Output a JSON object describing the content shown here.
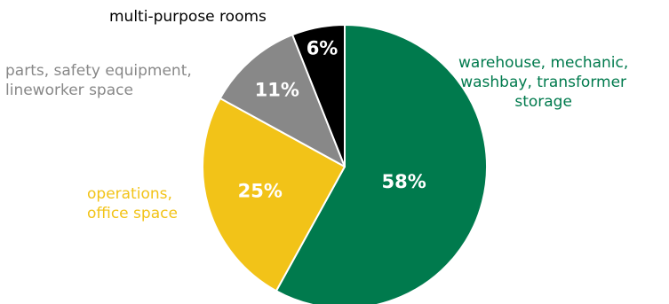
{
  "chart_data": {
    "type": "pie",
    "start": "top",
    "direction": "clockwise",
    "slices": [
      {
        "name": "warehouse, mechanic,\nwashbay, transformer\nstorage",
        "value": 58,
        "value_label": "58%",
        "color": "#007a4d"
      },
      {
        "name": "operations,\noffice space",
        "value": 25,
        "value_label": "25%",
        "color": "#f2c318"
      },
      {
        "name": "parts, safety equipment,\nlineworker space",
        "value": 11,
        "value_label": "11%",
        "color": "#888888"
      },
      {
        "name": "multi-purpose rooms",
        "value": 6,
        "value_label": "6%",
        "color": "#000000"
      }
    ],
    "category_label_colors": [
      "#007a4d",
      "#f2c318",
      "#888888",
      "#000000"
    ]
  }
}
